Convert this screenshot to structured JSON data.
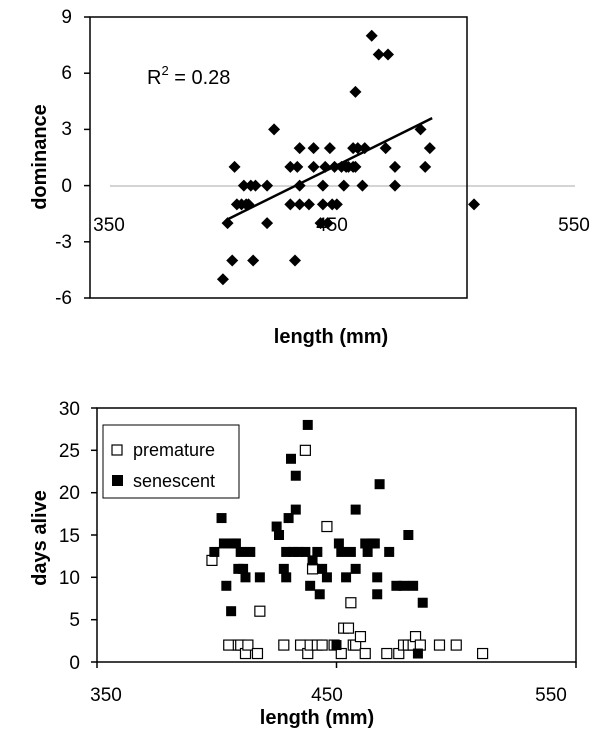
{
  "chart_data": [
    {
      "type": "scatter",
      "title": "",
      "xlabel": "length (mm)",
      "ylabel": "dominance",
      "xlim": [
        350,
        550
      ],
      "ylim": [
        -6,
        9
      ],
      "x_ticks": [
        "350",
        "450",
        "550"
      ],
      "y_ticks": [
        "-6",
        "-3",
        "0",
        "3",
        "6",
        "9"
      ],
      "annotation": {
        "prefix": "R",
        "sup": "2",
        "suffix": " = 0.28"
      },
      "trendline": {
        "x": [
          401,
          489
        ],
        "y": [
          -1.8,
          3.6
        ]
      },
      "series": [
        {
          "marker": "diamond",
          "points": [
            [
              399,
              -5
            ],
            [
              401,
              -2
            ],
            [
              403,
              -4
            ],
            [
              404,
              1
            ],
            [
              405,
              -1
            ],
            [
              407,
              -1
            ],
            [
              408,
              0
            ],
            [
              409,
              -1
            ],
            [
              410,
              -1
            ],
            [
              411,
              0
            ],
            [
              412,
              -4
            ],
            [
              413,
              0
            ],
            [
              418,
              -2
            ],
            [
              418,
              0
            ],
            [
              421,
              3
            ],
            [
              428,
              1
            ],
            [
              428,
              -1
            ],
            [
              430,
              -4
            ],
            [
              431,
              1
            ],
            [
              432,
              -1
            ],
            [
              432,
              0
            ],
            [
              432,
              2
            ],
            [
              436,
              -1
            ],
            [
              438,
              1
            ],
            [
              438,
              2
            ],
            [
              441,
              -2
            ],
            [
              442,
              -1
            ],
            [
              442,
              0
            ],
            [
              443,
              1
            ],
            [
              444,
              -2
            ],
            [
              445,
              2
            ],
            [
              446,
              -1
            ],
            [
              447,
              1
            ],
            [
              448,
              -1
            ],
            [
              450,
              1
            ],
            [
              451,
              0
            ],
            [
              452,
              1
            ],
            [
              453,
              1
            ],
            [
              455,
              1
            ],
            [
              455,
              2
            ],
            [
              456,
              1
            ],
            [
              456,
              5
            ],
            [
              457,
              2
            ],
            [
              459,
              0
            ],
            [
              460,
              2
            ],
            [
              463,
              8
            ],
            [
              466,
              7
            ],
            [
              469,
              2
            ],
            [
              470,
              7
            ],
            [
              473,
              1
            ],
            [
              473,
              0
            ],
            [
              484,
              3
            ],
            [
              486,
              1
            ],
            [
              488,
              2
            ],
            [
              507,
              -1
            ]
          ]
        }
      ]
    },
    {
      "type": "scatter",
      "title": "",
      "xlabel": "length (mm)",
      "ylabel": "days alive",
      "xlim": [
        350,
        550
      ],
      "ylim": [
        0,
        30
      ],
      "x_ticks": [
        "350",
        "450",
        "550"
      ],
      "y_ticks": [
        "0",
        "5",
        "10",
        "15",
        "20",
        "25",
        "30"
      ],
      "legend_position": "top-left",
      "series": [
        {
          "name": "premature",
          "marker": "open-square",
          "points": [
            [
              398,
              12
            ],
            [
              405,
              2
            ],
            [
              409,
              2
            ],
            [
              410,
              2
            ],
            [
              412,
              1
            ],
            [
              413,
              2
            ],
            [
              417,
              1
            ],
            [
              418,
              6
            ],
            [
              428,
              2
            ],
            [
              435,
              2
            ],
            [
              437,
              25
            ],
            [
              438,
              1
            ],
            [
              439,
              2
            ],
            [
              440,
              11
            ],
            [
              442,
              2
            ],
            [
              444,
              2
            ],
            [
              446,
              16
            ],
            [
              449,
              2
            ],
            [
              452,
              1
            ],
            [
              453,
              4
            ],
            [
              455,
              4
            ],
            [
              456,
              7
            ],
            [
              457,
              2
            ],
            [
              458,
              2
            ],
            [
              460,
              3
            ],
            [
              462,
              1
            ],
            [
              471,
              1
            ],
            [
              476,
              1
            ],
            [
              478,
              2
            ],
            [
              480,
              2
            ],
            [
              482,
              2
            ],
            [
              483,
              3
            ],
            [
              485,
              2
            ],
            [
              493,
              2
            ],
            [
              500,
              2
            ],
            [
              511,
              1
            ]
          ]
        },
        {
          "name": "senescent",
          "marker": "filled-square",
          "points": [
            [
              399,
              13
            ],
            [
              402,
              17
            ],
            [
              403,
              14
            ],
            [
              404,
              9
            ],
            [
              406,
              6
            ],
            [
              407,
              14
            ],
            [
              408,
              14
            ],
            [
              409,
              11
            ],
            [
              410,
              13
            ],
            [
              411,
              11
            ],
            [
              412,
              10
            ],
            [
              414,
              13
            ],
            [
              418,
              10
            ],
            [
              425,
              16
            ],
            [
              426,
              15
            ],
            [
              428,
              11
            ],
            [
              429,
              10
            ],
            [
              429,
              13
            ],
            [
              430,
              17
            ],
            [
              431,
              24
            ],
            [
              432,
              13
            ],
            [
              433,
              18
            ],
            [
              433,
              22
            ],
            [
              434,
              13
            ],
            [
              437,
              13
            ],
            [
              438,
              28
            ],
            [
              439,
              9
            ],
            [
              440,
              12
            ],
            [
              442,
              13
            ],
            [
              443,
              8
            ],
            [
              444,
              11
            ],
            [
              446,
              10
            ],
            [
              450,
              2
            ],
            [
              451,
              14
            ],
            [
              452,
              13
            ],
            [
              454,
              10
            ],
            [
              456,
              13
            ],
            [
              458,
              18
            ],
            [
              458,
              11
            ],
            [
              462,
              14
            ],
            [
              463,
              13
            ],
            [
              465,
              14
            ],
            [
              466,
              14
            ],
            [
              467,
              10
            ],
            [
              467,
              8
            ],
            [
              468,
              21
            ],
            [
              472,
              13
            ],
            [
              475,
              9
            ],
            [
              478,
              9
            ],
            [
              480,
              15
            ],
            [
              482,
              9
            ],
            [
              484,
              1
            ],
            [
              486,
              7
            ]
          ]
        }
      ]
    }
  ]
}
